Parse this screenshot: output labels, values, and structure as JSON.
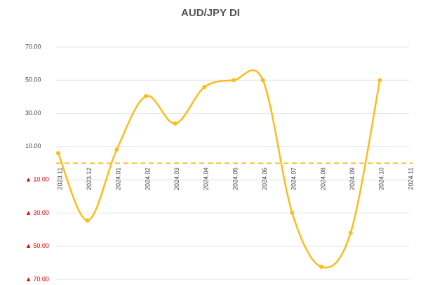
{
  "chart_data": {
    "type": "line",
    "title": "AUD/JPY  DI",
    "categories": [
      "2023.11",
      "2023.12",
      "2024.01",
      "2024.02",
      "2024.03",
      "2024.04",
      "2024.05",
      "2024.06",
      "2024.07",
      "2024.08",
      "2024.09",
      "2024.10",
      "2024.11"
    ],
    "values": [
      6.1,
      -34.5,
      8.2,
      40.4,
      23.9,
      45.9,
      50,
      50,
      -29.8,
      -62.4,
      -42,
      50,
      null
    ],
    "color": "#fbbd1d",
    "negative_tick_color": "#e00000",
    "ylim": [
      -70,
      70
    ],
    "yticks": [
      {
        "value": -70,
        "label": "▲ 70.00"
      },
      {
        "value": -50,
        "label": "▲ 50.00"
      },
      {
        "value": -30,
        "label": "▲ 30.00"
      },
      {
        "value": -10,
        "label": "▲ 10.00"
      },
      {
        "value": 10,
        "label": "10.00"
      },
      {
        "value": 30,
        "label": "30.00"
      },
      {
        "value": 50,
        "label": "50.00"
      },
      {
        "value": 70,
        "label": "70.00"
      }
    ],
    "grid": true,
    "zero_line": "dashed"
  }
}
